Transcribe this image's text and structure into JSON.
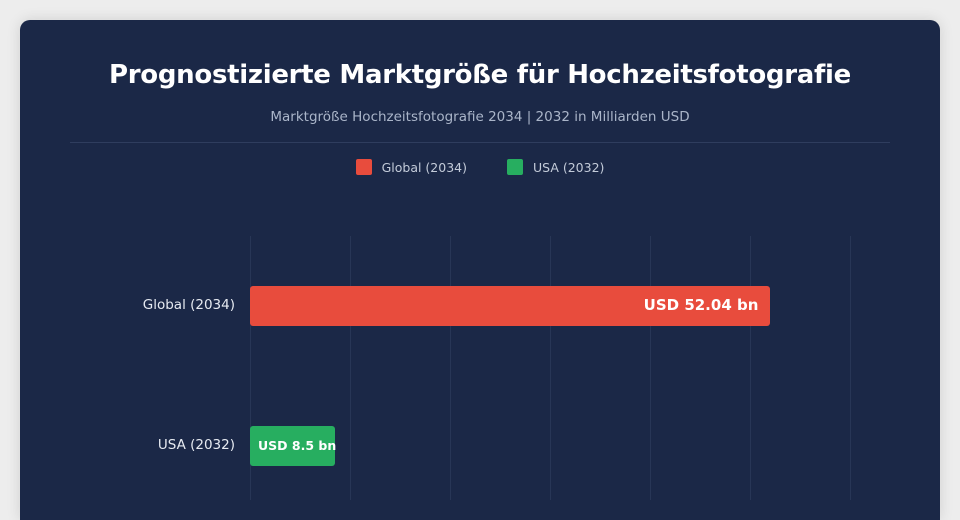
{
  "chart_data": {
    "type": "bar",
    "orientation": "horizontal",
    "title": "Prognostizierte Marktgröße für Hochzeitsfotografie",
    "subtitle": "Marktgröße Hochzeitsfotografie 2034 | 2032 in Milliarden USD",
    "categories": [
      "Global (2034)",
      "USA (2032)"
    ],
    "values": [
      52.04,
      8.5
    ],
    "data_labels": [
      "USD 52.04 bn",
      "USD 8.5 bn"
    ],
    "colors": [
      "#e84c3d",
      "#27ae60"
    ],
    "xlim": [
      0,
      60
    ],
    "grid": true,
    "legend": {
      "placement": "top-center",
      "entries": [
        "Global (2034)",
        "USA (2032)"
      ]
    }
  }
}
